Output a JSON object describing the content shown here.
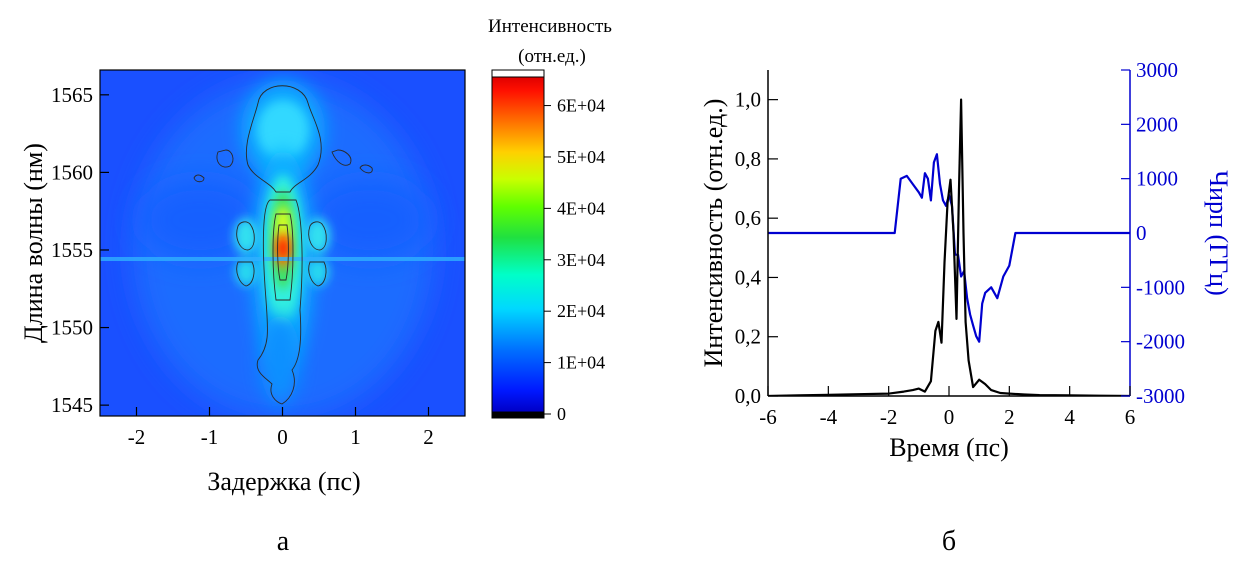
{
  "panel_labels": [
    "а",
    "б"
  ],
  "colors": {
    "intensity_line": "#000000",
    "chirp_line": "#0000d0",
    "chirp_axis": "#0000d0",
    "axis": "#000000"
  },
  "chart_data": [
    {
      "type": "heatmap",
      "panel": "а",
      "xlabel": "Задержка (пс)",
      "ylabel": "Длина волны (нм)",
      "xlim": [
        -2.5,
        2.5
      ],
      "ylim": [
        1544.3,
        1566.6
      ],
      "x_ticks": [
        "-2",
        "-1",
        "0",
        "1",
        "2"
      ],
      "y_ticks": [
        "1545",
        "1550",
        "1555",
        "1560",
        "1565"
      ],
      "colorbar": {
        "title_line1": "Интенсивность",
        "title_line2": "(отн.ед.)",
        "range": [
          0,
          64000
        ],
        "ticks": [
          "0",
          "1E+04",
          "2E+04",
          "3E+04",
          "4E+04",
          "5E+04",
          "6E+04"
        ]
      },
      "features": [
        {
          "delay": 0.0,
          "wavelength": 1555.0,
          "intensity": 64000
        },
        {
          "delay": 0.0,
          "wavelength": 1557.5,
          "intensity": 38000
        },
        {
          "delay": 0.0,
          "wavelength": 1553.5,
          "intensity": 42000
        },
        {
          "delay": 0.0,
          "wavelength": 1562.5,
          "intensity": 21000
        },
        {
          "delay": -0.5,
          "wavelength": 1556.0,
          "intensity": 19000
        },
        {
          "delay": 0.5,
          "wavelength": 1556.0,
          "intensity": 19000
        },
        {
          "delay": -0.5,
          "wavelength": 1554.3,
          "intensity": 17000
        },
        {
          "delay": 0.5,
          "wavelength": 1554.3,
          "intensity": 17000
        },
        {
          "delay": 0.0,
          "wavelength": 1547.5,
          "intensity": 13000
        }
      ]
    },
    {
      "type": "line",
      "panel": "б",
      "xlabel": "Время (пс)",
      "ylabel": "Интенсивность (отн.ед.)",
      "y2label": "Чирп (ГГц)",
      "xlim": [
        -6,
        6
      ],
      "ylim": [
        0,
        1.1
      ],
      "y2lim": [
        -3000,
        3000
      ],
      "x_ticks": [
        "-6",
        "-4",
        "-2",
        "0",
        "2",
        "4",
        "6"
      ],
      "y_ticks": [
        "0,0",
        "0,2",
        "0,4",
        "0,6",
        "0,8",
        "1,0"
      ],
      "y2_ticks": [
        "-3000",
        "-2000",
        "-1000",
        "0",
        "1000",
        "2000",
        "3000"
      ],
      "series": [
        {
          "axis": "left",
          "x": [
            -6,
            -5,
            -4,
            -3,
            -2,
            -1.5,
            -1.2,
            -1.0,
            -0.8,
            -0.6,
            -0.45,
            -0.35,
            -0.25,
            -0.15,
            -0.05,
            0.05,
            0.15,
            0.25,
            0.33,
            0.4,
            0.48,
            0.55,
            0.65,
            0.8,
            1.0,
            1.2,
            1.4,
            1.7,
            2.0,
            2.5,
            3,
            4,
            5,
            6
          ],
          "y": [
            0.0,
            0.002,
            0.004,
            0.006,
            0.008,
            0.015,
            0.02,
            0.025,
            0.015,
            0.05,
            0.22,
            0.25,
            0.18,
            0.45,
            0.65,
            0.73,
            0.55,
            0.26,
            0.7,
            1.0,
            0.55,
            0.25,
            0.12,
            0.03,
            0.055,
            0.04,
            0.02,
            0.01,
            0.008,
            0.005,
            0.003,
            0.002,
            0.001,
            0.0
          ]
        },
        {
          "axis": "right",
          "x": [
            -6,
            -1.8,
            -1.6,
            -1.4,
            -1.2,
            -1.0,
            -0.9,
            -0.8,
            -0.7,
            -0.6,
            -0.5,
            -0.4,
            -0.3,
            -0.2,
            -0.1,
            0.0,
            0.1,
            0.2,
            0.3,
            0.4,
            0.5,
            0.6,
            0.7,
            0.8,
            0.9,
            1.0,
            1.1,
            1.2,
            1.4,
            1.6,
            1.8,
            2.0,
            2.2,
            6
          ],
          "y": [
            0,
            0,
            1000,
            1050,
            900,
            750,
            650,
            1100,
            1000,
            600,
            1300,
            1450,
            900,
            600,
            500,
            700,
            500,
            -400,
            -400,
            -800,
            -700,
            -1200,
            -1500,
            -1700,
            -1900,
            -2000,
            -1300,
            -1100,
            -1000,
            -1200,
            -800,
            -600,
            0,
            0
          ]
        }
      ]
    }
  ]
}
